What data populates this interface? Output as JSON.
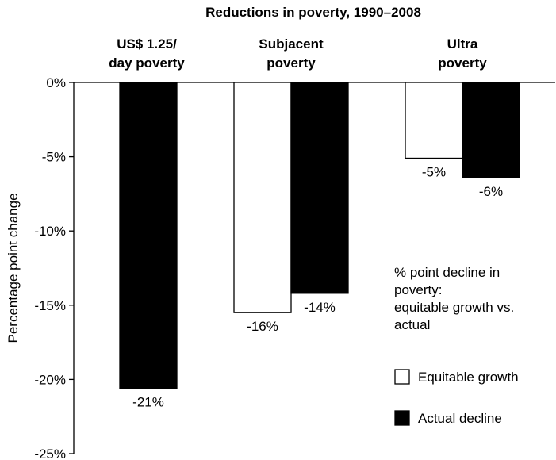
{
  "chart_data": {
    "type": "bar",
    "title": "Reductions in poverty, 1990–2008",
    "xlabel": "",
    "ylabel": "Percentage point change",
    "ylim": [
      -25,
      0
    ],
    "yticks": [
      "0%",
      "-5%",
      "-10%",
      "-15%",
      "-20%",
      "-25%"
    ],
    "ytick_values": [
      0,
      -5,
      -10,
      -15,
      -20,
      -25
    ],
    "category_label_position": "top",
    "categories": [
      [
        "US$ 1.25/",
        "day poverty"
      ],
      [
        "Subjacent",
        "poverty"
      ],
      [
        "Ultra",
        "poverty"
      ]
    ],
    "series": [
      {
        "name": "Equitable growth",
        "color": "#ffffff",
        "values": [
          null,
          -15.5,
          -5.1
        ],
        "labels": [
          "",
          "-16%",
          "-5%"
        ]
      },
      {
        "name": "Actual decline",
        "color": "#000000",
        "values": [
          -20.6,
          -14.2,
          -6.4
        ],
        "labels": [
          "-21%",
          "-14%",
          "-6%"
        ]
      }
    ],
    "legend": {
      "position": "right",
      "title_lines": [
        "% point decline in",
        "poverty:",
        "equitable growth vs.",
        "actual"
      ]
    },
    "grid": false
  }
}
